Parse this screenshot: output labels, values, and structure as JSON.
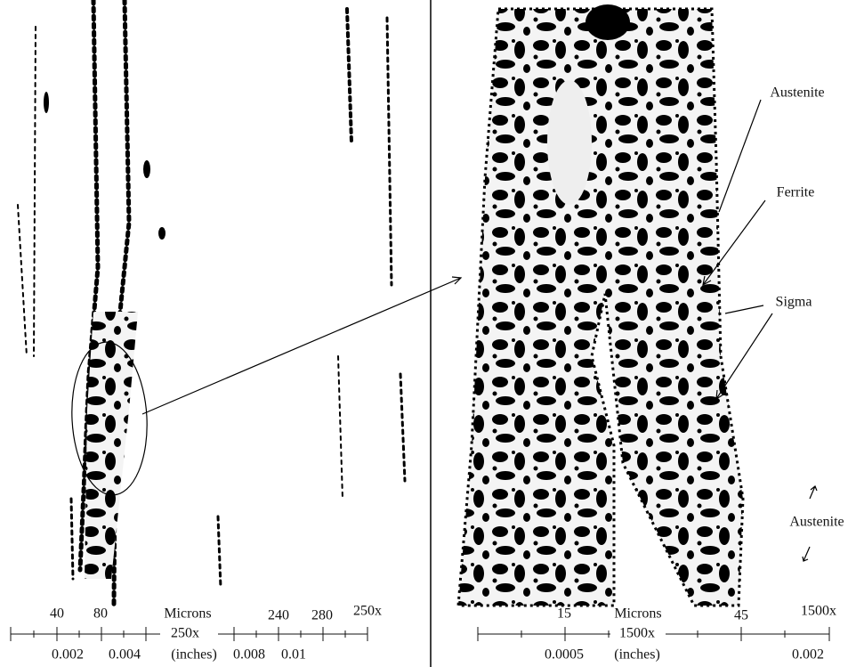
{
  "left_panel": {
    "magnification": "250x",
    "scale": {
      "micron_labels": [
        "40",
        "80"
      ],
      "microns_label": "Microns",
      "micron_labels_right": [
        "240",
        "280"
      ],
      "magnification": "250x",
      "inch_labels": [
        "0.002",
        "0.004"
      ],
      "inches_label": "(inches)",
      "inch_labels_right": [
        "0.008",
        "0.01"
      ]
    }
  },
  "right_panel": {
    "magnification": "1500x",
    "annotations": [
      "Austenite",
      "Ferrite",
      "Sigma",
      "Austenite"
    ],
    "scale": {
      "micron_labels": [
        "15"
      ],
      "microns_label": "Microns",
      "micron_labels_right": [
        "45"
      ],
      "magnification": "1500x",
      "inch_labels": [
        "0.0005"
      ],
      "inches_label": "(inches)",
      "inch_labels_right": [
        "0.002"
      ]
    }
  }
}
